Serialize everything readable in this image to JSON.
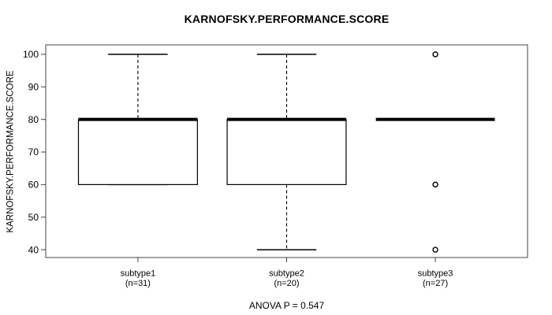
{
  "chart_data": {
    "type": "boxplot",
    "title": "KARNOFSKY.PERFORMANCE.SCORE",
    "ylabel": "KARNOFSKY.PERFORMANCE.SCORE",
    "annotation": "ANOVA P = 0.547",
    "y_ticks": [
      40,
      50,
      60,
      70,
      80,
      90,
      100
    ],
    "ylim": [
      37.6,
      102.9
    ],
    "grid": false,
    "legend": "none",
    "groups": [
      {
        "label": "subtype1",
        "n_label": "(n=31)",
        "n": 31,
        "whisker_low": 60,
        "q1": 60,
        "median": 80,
        "q3": 80,
        "whisker_high": 100,
        "outliers": []
      },
      {
        "label": "subtype2",
        "n_label": "(n=20)",
        "n": 20,
        "whisker_low": 40,
        "q1": 60,
        "median": 80,
        "q3": 80,
        "whisker_high": 100,
        "outliers": []
      },
      {
        "label": "subtype3",
        "n_label": "(n=27)",
        "n": 27,
        "whisker_low": 80,
        "q1": 80,
        "median": 80,
        "q3": 80,
        "whisker_high": 80,
        "outliers": [
          100,
          60,
          40
        ]
      }
    ],
    "colors": {
      "line": "#000000",
      "frame": "#444444",
      "background": "#ffffff"
    }
  }
}
